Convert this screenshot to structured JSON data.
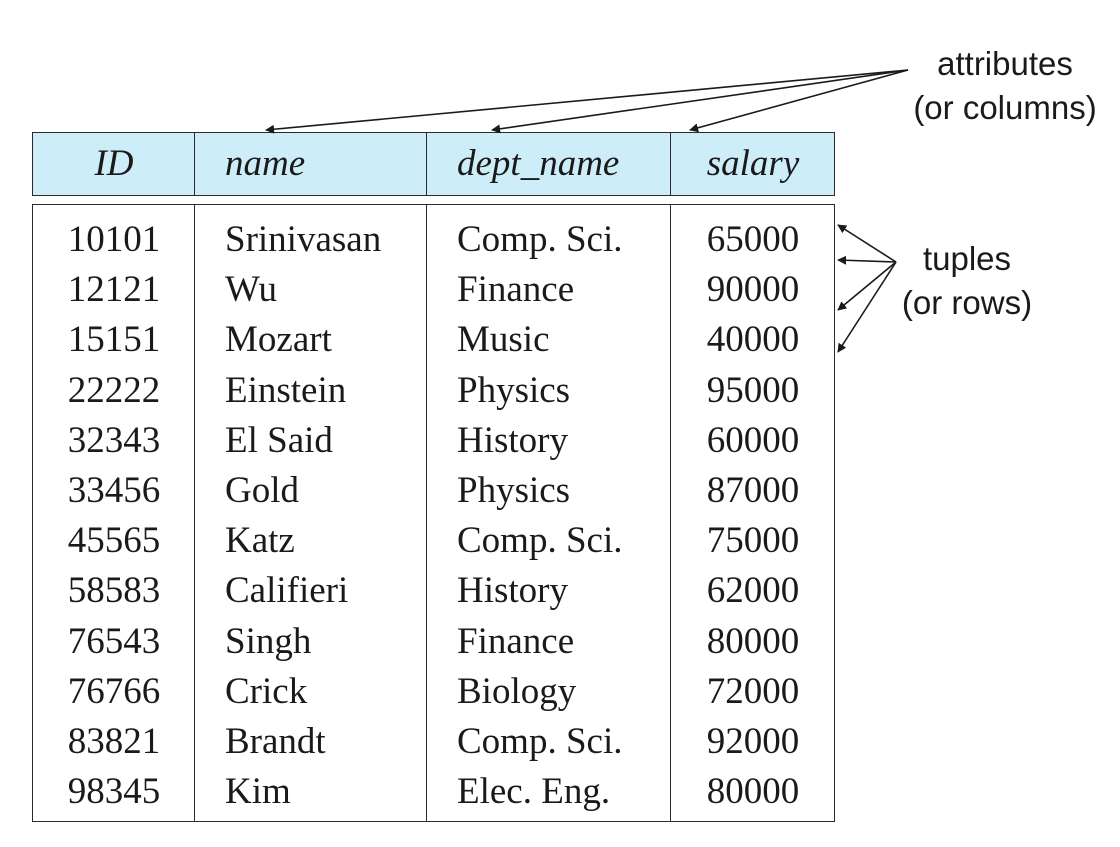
{
  "table": {
    "columns": [
      "ID",
      "name",
      "dept_name",
      "salary"
    ],
    "rows": [
      [
        "10101",
        "Srinivasan",
        "Comp. Sci.",
        "65000"
      ],
      [
        "12121",
        "Wu",
        "Finance",
        "90000"
      ],
      [
        "15151",
        "Mozart",
        "Music",
        "40000"
      ],
      [
        "22222",
        "Einstein",
        "Physics",
        "95000"
      ],
      [
        "32343",
        "El Said",
        "History",
        "60000"
      ],
      [
        "33456",
        "Gold",
        "Physics",
        "87000"
      ],
      [
        "45565",
        "Katz",
        "Comp. Sci.",
        "75000"
      ],
      [
        "58583",
        "Califieri",
        "History",
        "62000"
      ],
      [
        "76543",
        "Singh",
        "Finance",
        "80000"
      ],
      [
        "76766",
        "Crick",
        "Biology",
        "72000"
      ],
      [
        "83821",
        "Brandt",
        "Comp. Sci.",
        "92000"
      ],
      [
        "98345",
        "Kim",
        "Elec. Eng.",
        "80000"
      ]
    ]
  },
  "annotations": {
    "attributes": {
      "line1": "attributes",
      "line2": "(or columns)"
    },
    "tuples": {
      "line1": "tuples",
      "line2": "(or rows)"
    }
  },
  "colors": {
    "header_fill": "#cdeef8",
    "line": "#2a2a2a"
  }
}
